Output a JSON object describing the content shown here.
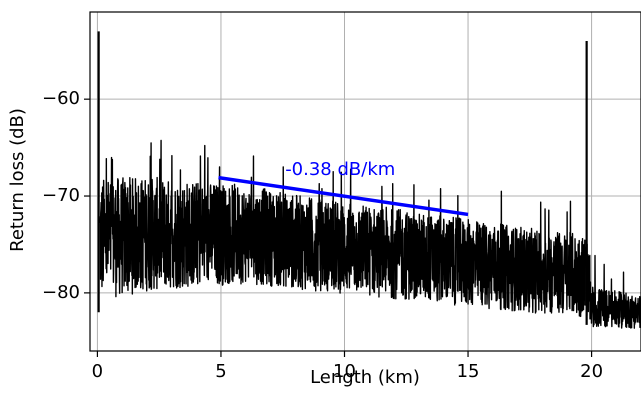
{
  "chart_data": {
    "type": "line",
    "title": "",
    "xlabel": "Length (km)",
    "ylabel": "Return loss (dB)",
    "xlim": [
      -0.3,
      22
    ],
    "ylim": [
      -86,
      -51
    ],
    "xticks": [
      0,
      5,
      10,
      15,
      20
    ],
    "yticks": [
      -60,
      -70,
      -80
    ],
    "xtick_labels": [
      "0",
      "5",
      "10",
      "15",
      "20"
    ],
    "ytick_labels": [
      "−60",
      "−70",
      "−80"
    ],
    "grid": true,
    "series": [
      {
        "color": "#000000",
        "envelope": {
          "x": [
            0.1,
            2,
            4,
            6,
            8,
            10,
            12,
            14,
            16,
            18,
            19.8,
            20,
            21,
            22
          ],
          "upper": [
            -67,
            -67,
            -67.5,
            -68,
            -69,
            -69.8,
            -70.5,
            -71.3,
            -72,
            -72.8,
            -73.2,
            -79,
            -79.5,
            -80
          ],
          "lower": [
            -82,
            -81,
            -80.5,
            -80,
            -80.5,
            -81,
            -81.5,
            -82,
            -82.5,
            -83,
            -83.3,
            -84,
            -84,
            -84
          ]
        },
        "spikes": [
          {
            "x": 0.05,
            "y": -53
          },
          {
            "x": 19.8,
            "y": -54
          }
        ]
      },
      {
        "color": "#0000ff",
        "x": [
          4.9,
          15
        ],
        "y": [
          -68.1,
          -71.9
        ]
      }
    ],
    "annotations": [
      {
        "text": "-0.38 dB/km",
        "x": 7.6,
        "y": -67.3,
        "color": "#0000ff"
      }
    ]
  }
}
